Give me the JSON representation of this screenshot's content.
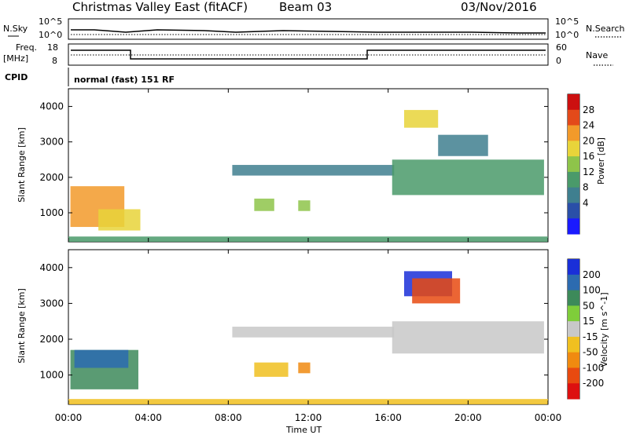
{
  "header": {
    "station": "Christmas Valley East (fitACF)",
    "beam": "Beam 03",
    "date": "03/Nov/2016"
  },
  "top_panels": {
    "n_sky_label": "N.Sky",
    "n_search_label": "N.Search",
    "noise_ticks": [
      "10^5",
      "10^0"
    ],
    "freq_label_1": "Freq.",
    "freq_label_2": "[MHz]",
    "freq_ticks": [
      "18",
      "8"
    ],
    "nave_label": "Nave",
    "nave_ticks": [
      "60",
      "0"
    ],
    "cpid_label": "CPID",
    "cpid_value": "normal (fast) 151 RF"
  },
  "chart_data": [
    {
      "type": "heatmap",
      "title": "Power",
      "ylabel": "Slant Range [km]",
      "xlabel": "Time UT",
      "x_ticks": [
        "00:00",
        "04:00",
        "08:00",
        "12:00",
        "16:00",
        "20:00",
        "00:00"
      ],
      "y_ticks": [
        1000,
        2000,
        3000,
        4000
      ],
      "xlim_hours": [
        0,
        24
      ],
      "ylim_km": [
        180,
        4500
      ],
      "colorbar": {
        "label": "Power [dB]",
        "ticks": [
          4,
          8,
          12,
          16,
          20,
          24,
          28
        ],
        "colors": [
          "#1a1aff",
          "#2a4fa8",
          "#3f7f8f",
          "#4a9a6a",
          "#8ec44a",
          "#e8d43a",
          "#f29a2a",
          "#e34a1a",
          "#cc1010"
        ]
      },
      "regions": [
        {
          "t0": 0.1,
          "t1": 2.8,
          "r0": 600,
          "r1": 1750,
          "level": 24
        },
        {
          "t0": 1.5,
          "t1": 3.6,
          "r0": 500,
          "r1": 1100,
          "level": 20
        },
        {
          "t0": 8.2,
          "t1": 16.3,
          "r0": 2050,
          "r1": 2350,
          "level": 8
        },
        {
          "t0": 9.3,
          "t1": 10.3,
          "r0": 1050,
          "r1": 1400,
          "level": 16
        },
        {
          "t0": 11.5,
          "t1": 12.1,
          "r0": 1050,
          "r1": 1350,
          "level": 16
        },
        {
          "t0": 16.2,
          "t1": 23.8,
          "r0": 1500,
          "r1": 2500,
          "level": 12
        },
        {
          "t0": 16.8,
          "t1": 18.5,
          "r0": 3400,
          "r1": 3900,
          "level": 20
        },
        {
          "t0": 18.5,
          "t1": 21.0,
          "r0": 2600,
          "r1": 3200,
          "level": 8
        },
        {
          "t0": 0,
          "t1": 24,
          "r0": 180,
          "r1": 330,
          "level": 12
        }
      ]
    },
    {
      "type": "heatmap",
      "title": "Velocity",
      "ylabel": "Slant Range [km]",
      "xlabel": "Time UT",
      "x_ticks": [
        "00:00",
        "04:00",
        "08:00",
        "12:00",
        "16:00",
        "20:00",
        "00:00"
      ],
      "y_ticks": [
        1000,
        2000,
        3000,
        4000
      ],
      "xlim_hours": [
        0,
        24
      ],
      "ylim_km": [
        180,
        4500
      ],
      "colorbar": {
        "label": "Velocity [m s^-1]",
        "ticks": [
          200,
          100,
          50,
          15,
          -15,
          -50,
          -100,
          -200
        ],
        "colors": [
          "#1a2fd8",
          "#2c6bb0",
          "#3d8a5a",
          "#7fcd3a",
          "#c8c8c8",
          "#f0c020",
          "#f08a10",
          "#e84a10",
          "#dd1010"
        ]
      },
      "regions": [
        {
          "t0": 0.1,
          "t1": 3.5,
          "r0": 600,
          "r1": 1700,
          "level": 50
        },
        {
          "t0": 0.3,
          "t1": 3.0,
          "r0": 1200,
          "r1": 1700,
          "level": 100
        },
        {
          "t0": 8.2,
          "t1": 16.3,
          "r0": 2050,
          "r1": 2350,
          "level": 0
        },
        {
          "t0": 9.3,
          "t1": 11.0,
          "r0": 950,
          "r1": 1350,
          "level": -50
        },
        {
          "t0": 11.5,
          "t1": 12.1,
          "r0": 1050,
          "r1": 1350,
          "level": -100
        },
        {
          "t0": 16.2,
          "t1": 23.8,
          "r0": 1600,
          "r1": 2500,
          "level": 0
        },
        {
          "t0": 16.8,
          "t1": 19.2,
          "r0": 3200,
          "r1": 3900,
          "level": 200
        },
        {
          "t0": 17.2,
          "t1": 19.6,
          "r0": 3000,
          "r1": 3700,
          "level": -200
        },
        {
          "t0": 0,
          "t1": 24,
          "r0": 180,
          "r1": 330,
          "level": -50
        }
      ]
    }
  ]
}
